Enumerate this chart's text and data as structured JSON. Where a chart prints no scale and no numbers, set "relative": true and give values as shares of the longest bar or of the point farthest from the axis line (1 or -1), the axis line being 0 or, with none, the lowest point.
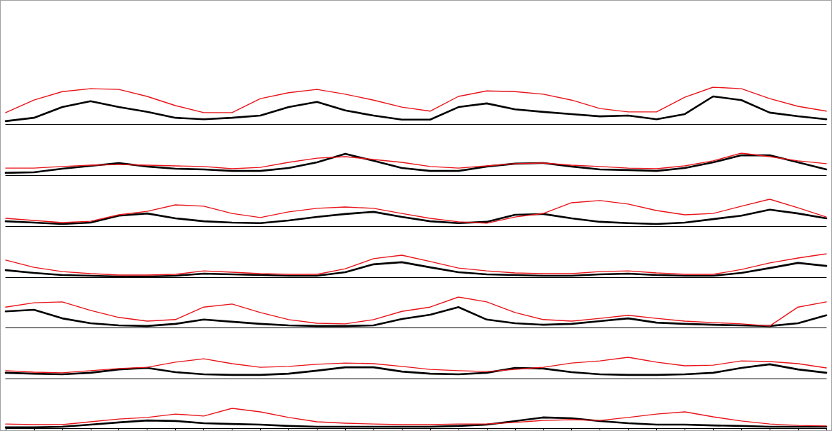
{
  "chart_data": [
    {
      "type": "line",
      "relative": true,
      "grid": false,
      "tick_labels": false,
      "categories": [
        null,
        null,
        null,
        null,
        null,
        null,
        null,
        null,
        null,
        null,
        null,
        null,
        null,
        null,
        null,
        null,
        null,
        null,
        null,
        null,
        null,
        null,
        null,
        null,
        null,
        null,
        null,
        null,
        null,
        null
      ],
      "series": [
        {
          "color": "#000000",
          "values": [
            0.08,
            0.17,
            0.46,
            0.62,
            0.46,
            0.33,
            0.17,
            0.13,
            0.17,
            0.23,
            0.46,
            0.6,
            0.37,
            0.23,
            0.12,
            0.12,
            0.46,
            0.56,
            0.4,
            0.33,
            0.27,
            0.21,
            0.23,
            0.13,
            0.27,
            0.75,
            0.65,
            0.31,
            0.21,
            0.13
          ]
        },
        {
          "color": "#e8141a",
          "values": [
            0.31,
            0.65,
            0.88,
            0.96,
            0.94,
            0.75,
            0.5,
            0.31,
            0.31,
            0.69,
            0.85,
            0.94,
            0.81,
            0.65,
            0.46,
            0.35,
            0.75,
            0.9,
            0.88,
            0.81,
            0.65,
            0.42,
            0.33,
            0.33,
            0.73,
            1,
            0.96,
            0.69,
            0.48,
            0.35
          ]
        }
      ]
    },
    {
      "type": "line",
      "relative": true,
      "grid": false,
      "tick_labels": false,
      "categories": [
        null,
        null,
        null,
        null,
        null,
        null,
        null,
        null,
        null,
        null,
        null,
        null,
        null,
        null,
        null,
        null,
        null,
        null,
        null,
        null,
        null,
        null,
        null,
        null,
        null,
        null,
        null,
        null,
        null,
        null
      ],
      "series": [
        {
          "color": "#000000",
          "values": [
            0.1,
            0.13,
            0.29,
            0.42,
            0.55,
            0.39,
            0.29,
            0.26,
            0.19,
            0.19,
            0.32,
            0.58,
            0.97,
            0.65,
            0.32,
            0.19,
            0.19,
            0.39,
            0.52,
            0.55,
            0.39,
            0.26,
            0.23,
            0.19,
            0.32,
            0.58,
            0.9,
            0.9,
            0.58,
            0.26
          ]
        },
        {
          "color": "#e8141a",
          "values": [
            0.32,
            0.32,
            0.39,
            0.45,
            0.48,
            0.45,
            0.42,
            0.39,
            0.29,
            0.35,
            0.58,
            0.77,
            0.84,
            0.71,
            0.58,
            0.39,
            0.32,
            0.42,
            0.52,
            0.55,
            0.45,
            0.39,
            0.32,
            0.29,
            0.42,
            0.65,
            1,
            0.84,
            0.65,
            0.52
          ]
        }
      ]
    },
    {
      "type": "line",
      "relative": true,
      "grid": false,
      "tick_labels": false,
      "categories": [
        null,
        null,
        null,
        null,
        null,
        null,
        null,
        null,
        null,
        null,
        null,
        null,
        null,
        null,
        null,
        null,
        null,
        null,
        null,
        null,
        null,
        null,
        null,
        null,
        null,
        null,
        null,
        null,
        null,
        null
      ],
      "series": [
        {
          "color": "#000000",
          "values": [
            0.18,
            0.13,
            0.08,
            0.13,
            0.39,
            0.47,
            0.29,
            0.18,
            0.13,
            0.11,
            0.21,
            0.34,
            0.45,
            0.53,
            0.34,
            0.18,
            0.11,
            0.16,
            0.42,
            0.45,
            0.29,
            0.16,
            0.11,
            0.08,
            0.13,
            0.26,
            0.39,
            0.61,
            0.47,
            0.29
          ]
        },
        {
          "color": "#e8141a",
          "values": [
            0.29,
            0.21,
            0.13,
            0.18,
            0.42,
            0.55,
            0.79,
            0.74,
            0.47,
            0.32,
            0.53,
            0.66,
            0.71,
            0.66,
            0.47,
            0.29,
            0.16,
            0.11,
            0.34,
            0.47,
            0.87,
            0.95,
            0.82,
            0.58,
            0.42,
            0.47,
            0.74,
            1,
            0.68,
            0.34
          ]
        }
      ]
    },
    {
      "type": "line",
      "relative": true,
      "grid": false,
      "tick_labels": false,
      "categories": [
        null,
        null,
        null,
        null,
        null,
        null,
        null,
        null,
        null,
        null,
        null,
        null,
        null,
        null,
        null,
        null,
        null,
        null,
        null,
        null,
        null,
        null,
        null,
        null,
        null,
        null,
        null,
        null,
        null,
        null
      ],
      "series": [
        {
          "color": "#000000",
          "values": [
            0.3,
            0.18,
            0.09,
            0.06,
            0.03,
            0.03,
            0.06,
            0.15,
            0.12,
            0.09,
            0.06,
            0.06,
            0.21,
            0.55,
            0.64,
            0.42,
            0.21,
            0.12,
            0.09,
            0.06,
            0.06,
            0.12,
            0.15,
            0.09,
            0.06,
            0.06,
            0.18,
            0.39,
            0.61,
            0.48
          ]
        },
        {
          "color": "#e8141a",
          "values": [
            0.73,
            0.42,
            0.24,
            0.15,
            0.09,
            0.09,
            0.12,
            0.27,
            0.21,
            0.15,
            0.12,
            0.12,
            0.36,
            0.79,
            0.94,
            0.67,
            0.39,
            0.27,
            0.18,
            0.15,
            0.15,
            0.24,
            0.27,
            0.18,
            0.12,
            0.12,
            0.33,
            0.61,
            0.82,
            1
          ]
        }
      ]
    },
    {
      "type": "line",
      "relative": true,
      "grid": false,
      "tick_labels": false,
      "categories": [
        null,
        null,
        null,
        null,
        null,
        null,
        null,
        null,
        null,
        null,
        null,
        null,
        null,
        null,
        null,
        null,
        null,
        null,
        null,
        null,
        null,
        null,
        null,
        null,
        null,
        null,
        null,
        null,
        null,
        null
      ],
      "series": [
        {
          "color": "#000000",
          "values": [
            0.53,
            0.58,
            0.3,
            0.14,
            0.07,
            0.05,
            0.12,
            0.26,
            0.19,
            0.12,
            0.07,
            0.05,
            0.05,
            0.07,
            0.28,
            0.42,
            0.67,
            0.26,
            0.14,
            0.09,
            0.12,
            0.21,
            0.3,
            0.16,
            0.12,
            0.09,
            0.07,
            0.05,
            0.14,
            0.4
          ]
        },
        {
          "color": "#e8141a",
          "values": [
            0.67,
            0.81,
            0.84,
            0.56,
            0.33,
            0.21,
            0.26,
            0.67,
            0.77,
            0.49,
            0.26,
            0.14,
            0.12,
            0.26,
            0.53,
            0.67,
            1,
            0.84,
            0.49,
            0.26,
            0.21,
            0.3,
            0.4,
            0.3,
            0.21,
            0.16,
            0.12,
            0.05,
            0.67,
            0.84
          ]
        }
      ]
    },
    {
      "type": "line",
      "relative": true,
      "grid": false,
      "tick_labels": false,
      "categories": [
        null,
        null,
        null,
        null,
        null,
        null,
        null,
        null,
        null,
        null,
        null,
        null,
        null,
        null,
        null,
        null,
        null,
        null,
        null,
        null,
        null,
        null,
        null,
        null,
        null,
        null,
        null,
        null,
        null,
        null
      ],
      "series": [
        {
          "color": "#000000",
          "values": [
            0.27,
            0.23,
            0.2,
            0.27,
            0.43,
            0.5,
            0.3,
            0.2,
            0.17,
            0.17,
            0.23,
            0.37,
            0.53,
            0.53,
            0.33,
            0.23,
            0.2,
            0.27,
            0.5,
            0.47,
            0.3,
            0.2,
            0.17,
            0.17,
            0.2,
            0.27,
            0.5,
            0.67,
            0.43,
            0.27
          ]
        },
        {
          "color": "#e8141a",
          "values": [
            0.37,
            0.3,
            0.27,
            0.37,
            0.47,
            0.53,
            0.77,
            0.93,
            0.7,
            0.53,
            0.57,
            0.67,
            0.73,
            0.7,
            0.57,
            0.43,
            0.37,
            0.33,
            0.43,
            0.53,
            0.73,
            0.83,
            1,
            0.77,
            0.6,
            0.63,
            0.83,
            0.8,
            0.7,
            0.5
          ]
        }
      ]
    },
    {
      "type": "line",
      "relative": true,
      "grid": false,
      "tick_labels": false,
      "categories": [
        null,
        null,
        null,
        null,
        null,
        null,
        null,
        null,
        null,
        null,
        null,
        null,
        null,
        null,
        null,
        null,
        null,
        null,
        null,
        null,
        null,
        null,
        null,
        null,
        null,
        null,
        null,
        null,
        null,
        null
      ],
      "series": [
        {
          "color": "#000000",
          "values": [
            0.04,
            0.04,
            0.07,
            0.18,
            0.29,
            0.39,
            0.36,
            0.25,
            0.21,
            0.18,
            0.11,
            0.07,
            0.07,
            0.07,
            0.07,
            0.07,
            0.11,
            0.18,
            0.36,
            0.54,
            0.5,
            0.36,
            0.25,
            0.18,
            0.18,
            0.14,
            0.11,
            0.07,
            0.07,
            0.07
          ]
        },
        {
          "color": "#e8141a",
          "values": [
            0.21,
            0.18,
            0.18,
            0.32,
            0.46,
            0.54,
            0.71,
            0.61,
            1,
            0.82,
            0.54,
            0.32,
            0.25,
            0.21,
            0.18,
            0.18,
            0.21,
            0.21,
            0.29,
            0.39,
            0.43,
            0.39,
            0.54,
            0.71,
            0.82,
            0.57,
            0.36,
            0.21,
            0.14,
            0.11
          ]
        }
      ]
    }
  ]
}
